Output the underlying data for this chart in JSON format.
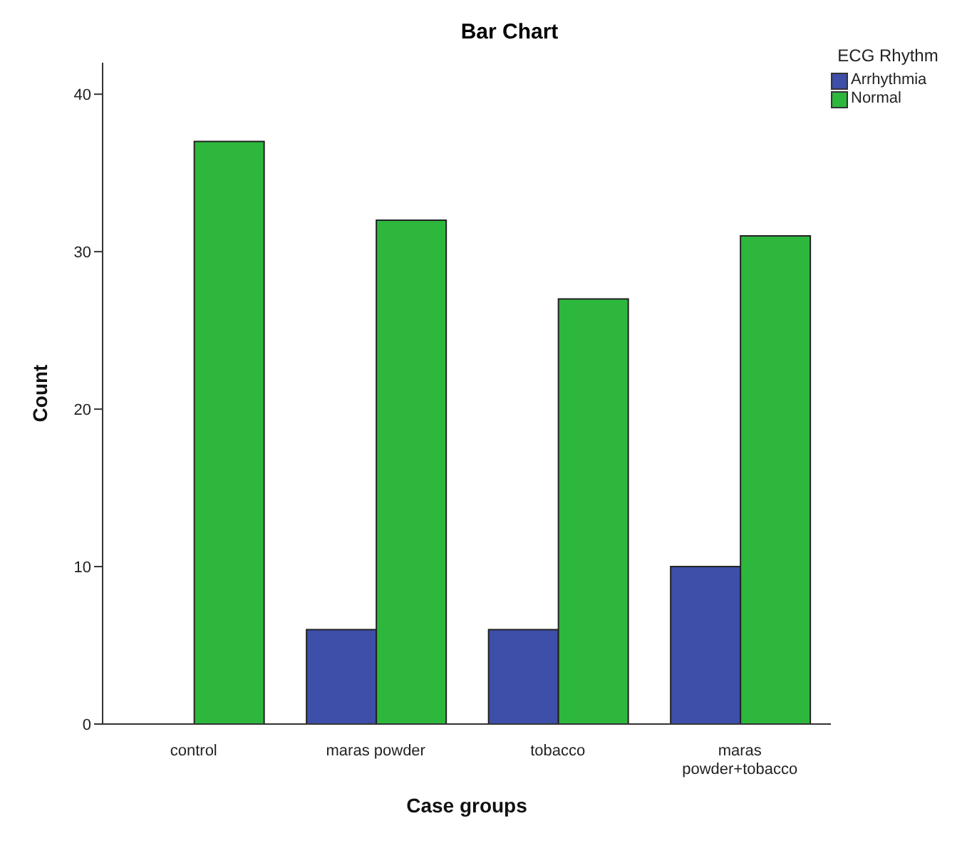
{
  "chart_data": {
    "type": "bar",
    "title": "Bar Chart",
    "xlabel": "Case groups",
    "ylabel": "Count",
    "legend_title": "ECG Rhythm",
    "categories": [
      "control",
      "maras powder",
      "tobacco",
      "maras powder+tobacco"
    ],
    "series": [
      {
        "name": "Arrhythmia",
        "color": "#3d4fa8",
        "values": [
          0,
          6,
          6,
          10
        ]
      },
      {
        "name": "Normal",
        "color": "#2db83d",
        "values": [
          37,
          32,
          27,
          31
        ]
      }
    ],
    "ylim": [
      0,
      42
    ],
    "yticks": [
      0,
      10,
      20,
      30,
      40
    ],
    "grid": false,
    "legend": "top right"
  }
}
